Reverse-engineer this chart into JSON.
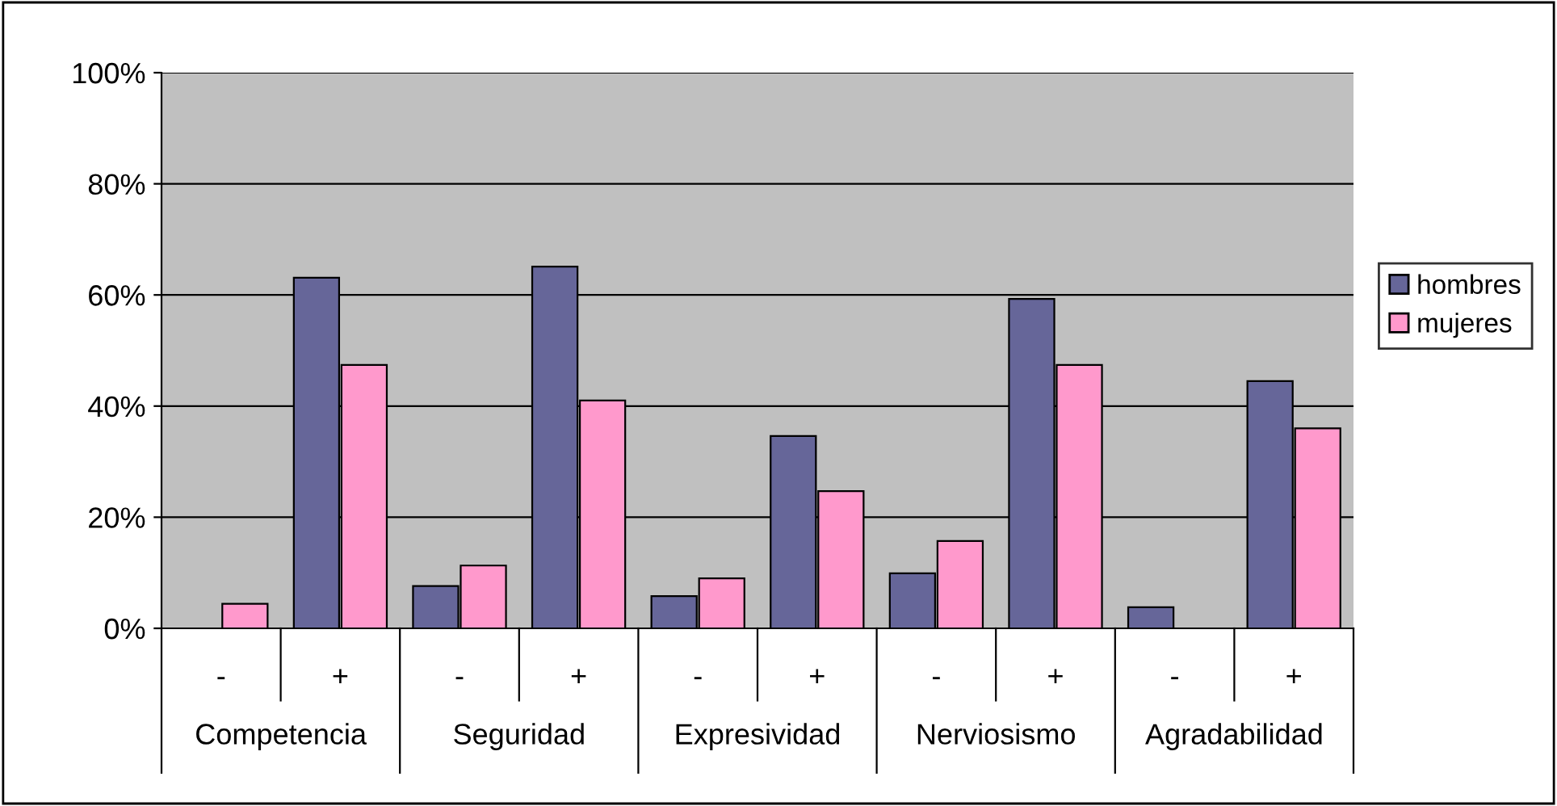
{
  "chart_data": {
    "type": "bar",
    "categories": [
      "-",
      "+",
      "-",
      "+",
      "-",
      "+",
      "-",
      "+",
      "-",
      "+"
    ],
    "annotations": [
      "Competencia",
      "Seguridad",
      "Expresividad",
      "Nerviosismo",
      "Agradabilidad"
    ],
    "series": [
      {
        "name": "hombres",
        "color": "#666699",
        "values": [
          null,
          63.1,
          7.6,
          65.1,
          5.8,
          34.6,
          9.9,
          59.3,
          3.8,
          44.5
        ]
      },
      {
        "name": "mujeres",
        "color": "#ff99cc",
        "values": [
          4.4,
          47.4,
          11.3,
          41,
          9,
          24.7,
          15.7,
          47.4,
          null,
          36
        ]
      }
    ],
    "ylim": [
      0,
      100
    ],
    "yticks": [
      {
        "value": 0,
        "label": "0%"
      },
      {
        "value": 20,
        "label": "20%"
      },
      {
        "value": 40,
        "label": "40%"
      },
      {
        "value": 60,
        "label": "60%"
      },
      {
        "value": 80,
        "label": "80%"
      },
      {
        "value": 100,
        "label": "100%"
      }
    ],
    "grid": "y",
    "legend": "right"
  }
}
